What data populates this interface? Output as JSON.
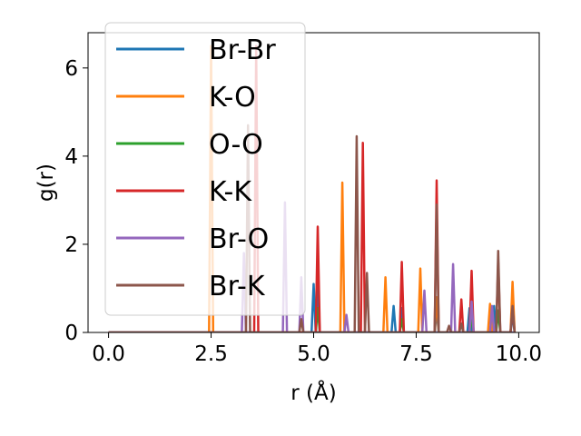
{
  "chart_data": {
    "type": "line",
    "title": "",
    "xlabel": "r (Å)",
    "ylabel": "g(r)",
    "xlim": [
      -0.5,
      10.5
    ],
    "ylim": [
      0,
      6.8
    ],
    "xticks": [
      0.0,
      2.5,
      5.0,
      7.5,
      10.0
    ],
    "xtick_labels": [
      "0.0",
      "2.5",
      "5.0",
      "7.5",
      "10.0"
    ],
    "yticks": [
      0,
      2,
      4,
      6
    ],
    "ytick_labels": [
      "0",
      "2",
      "4",
      "6"
    ],
    "grid": false,
    "legend_position": "top-left",
    "series": [
      {
        "name": "Br-Br",
        "color": "#1f77b4",
        "peaks": [
          [
            5.0,
            1.1
          ],
          [
            5.1,
            1.05
          ],
          [
            6.95,
            0.6
          ],
          [
            7.15,
            0.55
          ],
          [
            8.0,
            0.5
          ],
          [
            8.8,
            0.55
          ],
          [
            9.4,
            0.6
          ],
          [
            9.85,
            0.4
          ]
        ]
      },
      {
        "name": "K-O",
        "color": "#ff7f0e",
        "peaks": [
          [
            2.5,
            6.5
          ],
          [
            5.7,
            3.4
          ],
          [
            6.75,
            1.25
          ],
          [
            7.6,
            1.45
          ],
          [
            8.0,
            0.8
          ],
          [
            9.3,
            0.65
          ],
          [
            9.85,
            1.15
          ]
        ]
      },
      {
        "name": "O-O",
        "color": "#2ca02c",
        "peaks": [
          [
            5.1,
            0.55
          ],
          [
            7.15,
            0.3
          ],
          [
            8.85,
            0.35
          ],
          [
            9.5,
            0.5
          ]
        ]
      },
      {
        "name": "K-K",
        "color": "#d62728",
        "peaks": [
          [
            3.6,
            6.5
          ],
          [
            5.1,
            2.4
          ],
          [
            6.2,
            4.3
          ],
          [
            7.15,
            1.6
          ],
          [
            8.0,
            3.45
          ],
          [
            8.6,
            0.75
          ],
          [
            8.85,
            1.4
          ],
          [
            9.5,
            1.6
          ],
          [
            9.85,
            0.55
          ]
        ]
      },
      {
        "name": "Br-O",
        "color": "#9467bd",
        "peaks": [
          [
            3.3,
            1.8
          ],
          [
            4.3,
            2.95
          ],
          [
            4.7,
            1.25
          ],
          [
            5.8,
            0.4
          ],
          [
            7.7,
            0.95
          ],
          [
            8.4,
            1.55
          ],
          [
            8.85,
            0.7
          ],
          [
            9.35,
            0.6
          ]
        ]
      },
      {
        "name": "Br-K",
        "color": "#8c564b",
        "peaks": [
          [
            3.4,
            4.7
          ],
          [
            4.7,
            0.3
          ],
          [
            6.05,
            4.45
          ],
          [
            6.3,
            1.35
          ],
          [
            8.0,
            2.9
          ],
          [
            8.3,
            0.15
          ],
          [
            8.6,
            0.2
          ],
          [
            9.5,
            1.85
          ],
          [
            9.85,
            0.6
          ]
        ]
      }
    ]
  }
}
